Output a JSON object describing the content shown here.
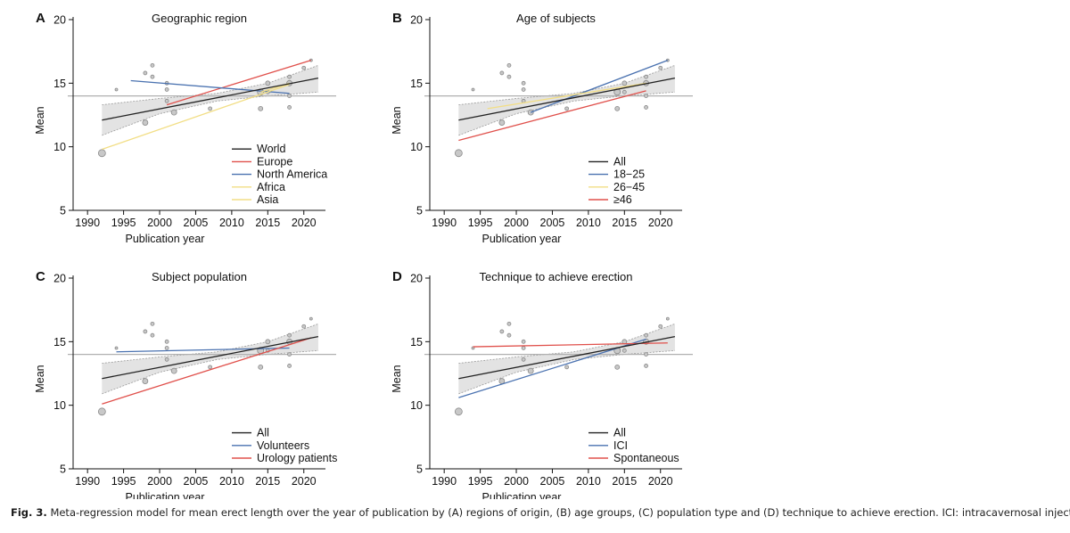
{
  "caption": {
    "label": "Fig. 3.",
    "text": "Meta-regression model for mean erect length over the year of publication by (A) regions of origin, (B) age groups, (C) population type and (D) technique to achieve erection. ICI: intracavernosal injection."
  },
  "colors": {
    "black": "#222222",
    "red": "#e0504b",
    "blue": "#4a72b0",
    "yellow": "#f2de85",
    "ci_fill": "#e3e3e3",
    "ci_line": "#9a9a9a",
    "ref_line": "#b0b0b0",
    "point_fill": "#c8c8c8",
    "point_stroke": "#8a8a8a"
  },
  "chart_data": [
    {
      "panel": "A",
      "type": "scatter",
      "title": "Geographic region",
      "xlabel": "Publication year",
      "ylabel": "Mean",
      "xlim": [
        1988,
        2023
      ],
      "ylim": [
        5,
        20
      ],
      "xticks": [
        1990,
        1995,
        2000,
        2005,
        2010,
        2015,
        2020
      ],
      "yticks": [
        5,
        10,
        15,
        20
      ],
      "reference_y": 14,
      "ci_band": [
        [
          1992,
          10.9,
          13.3
        ],
        [
          2000,
          12.6,
          13.8
        ],
        [
          2008,
          13.6,
          14.2
        ],
        [
          2015,
          14.0,
          15.0
        ],
        [
          2022,
          14.3,
          16.4
        ]
      ],
      "points": [
        [
          1992,
          9.5,
          4
        ],
        [
          1994,
          14.5,
          1.5
        ],
        [
          1998,
          11.9,
          3
        ],
        [
          1998,
          15.8,
          2
        ],
        [
          1999,
          16.4,
          2
        ],
        [
          1999,
          15.5,
          2
        ],
        [
          2001,
          13.6,
          2
        ],
        [
          2001,
          14.5,
          2
        ],
        [
          2001,
          15.0,
          2
        ],
        [
          2002,
          12.7,
          3
        ],
        [
          2007,
          13.0,
          2
        ],
        [
          2014,
          13.0,
          2.5
        ],
        [
          2014,
          14.3,
          3.5
        ],
        [
          2015,
          14.3,
          2
        ],
        [
          2015,
          15.0,
          2.5
        ],
        [
          2018,
          13.1,
          2
        ],
        [
          2018,
          14.0,
          2
        ],
        [
          2018,
          15.0,
          3
        ],
        [
          2018,
          15.5,
          2
        ],
        [
          2020,
          16.2,
          2
        ],
        [
          2021,
          16.8,
          1.5
        ]
      ],
      "series": [
        {
          "name": "World",
          "color": "#222222",
          "x": [
            1992,
            2022
          ],
          "y": [
            12.1,
            15.4
          ]
        },
        {
          "name": "Europe",
          "color": "#e0504b",
          "x": [
            2001,
            2021
          ],
          "y": [
            13.3,
            16.8
          ]
        },
        {
          "name": "North America",
          "color": "#4a72b0",
          "x": [
            1996,
            2018
          ],
          "y": [
            15.2,
            14.2
          ]
        },
        {
          "name": "Africa",
          "color": "#f2de85",
          "x": [
            1992,
            2018
          ],
          "y": [
            9.8,
            14.9
          ]
        },
        {
          "name": "Asia",
          "color": "#f2de85",
          "x": [
            2014,
            2018
          ],
          "y": [
            14.3,
            15.0
          ]
        }
      ]
    },
    {
      "panel": "B",
      "type": "scatter",
      "title": "Age of subjects",
      "xlabel": "Publication year",
      "ylabel": "Mean",
      "xlim": [
        1988,
        2023
      ],
      "ylim": [
        5,
        20
      ],
      "xticks": [
        1990,
        1995,
        2000,
        2005,
        2010,
        2015,
        2020
      ],
      "yticks": [
        5,
        10,
        15,
        20
      ],
      "reference_y": 14,
      "ci_band": [
        [
          1992,
          10.9,
          13.3
        ],
        [
          2000,
          12.6,
          13.8
        ],
        [
          2008,
          13.6,
          14.2
        ],
        [
          2015,
          14.0,
          15.0
        ],
        [
          2022,
          14.3,
          16.4
        ]
      ],
      "points": [
        [
          1992,
          9.5,
          4
        ],
        [
          1994,
          14.5,
          1.5
        ],
        [
          1998,
          11.9,
          3
        ],
        [
          1998,
          15.8,
          2
        ],
        [
          1999,
          16.4,
          2
        ],
        [
          1999,
          15.5,
          2
        ],
        [
          2001,
          13.6,
          2
        ],
        [
          2001,
          14.5,
          2
        ],
        [
          2001,
          15.0,
          2
        ],
        [
          2002,
          12.7,
          3
        ],
        [
          2007,
          13.0,
          2
        ],
        [
          2014,
          13.0,
          2.5
        ],
        [
          2014,
          14.3,
          3.5
        ],
        [
          2015,
          14.3,
          2
        ],
        [
          2015,
          15.0,
          2.5
        ],
        [
          2018,
          13.1,
          2
        ],
        [
          2018,
          14.0,
          2
        ],
        [
          2018,
          15.0,
          3
        ],
        [
          2018,
          15.5,
          2
        ],
        [
          2020,
          16.2,
          2
        ],
        [
          2021,
          16.8,
          1.5
        ]
      ],
      "series": [
        {
          "name": "All",
          "color": "#222222",
          "x": [
            1992,
            2022
          ],
          "y": [
            12.1,
            15.4
          ]
        },
        {
          "name": "18−25",
          "color": "#4a72b0",
          "x": [
            2002,
            2021
          ],
          "y": [
            12.7,
            16.8
          ]
        },
        {
          "name": "26−45",
          "color": "#f2de85",
          "x": [
            1996,
            2018
          ],
          "y": [
            13.0,
            15.0
          ]
        },
        {
          "name": "≥46",
          "color": "#e0504b",
          "x": [
            1992,
            2018
          ],
          "y": [
            10.5,
            14.4
          ]
        }
      ]
    },
    {
      "panel": "C",
      "type": "scatter",
      "title": "Subject population",
      "xlabel": "Publication year",
      "ylabel": "Mean",
      "xlim": [
        1988,
        2023
      ],
      "ylim": [
        5,
        20
      ],
      "xticks": [
        1990,
        1995,
        2000,
        2005,
        2010,
        2015,
        2020
      ],
      "yticks": [
        5,
        10,
        15,
        20
      ],
      "reference_y": 14,
      "ci_band": [
        [
          1992,
          10.9,
          13.3
        ],
        [
          2000,
          12.6,
          13.8
        ],
        [
          2008,
          13.6,
          14.2
        ],
        [
          2015,
          14.0,
          15.0
        ],
        [
          2022,
          14.3,
          16.4
        ]
      ],
      "points": [
        [
          1992,
          9.5,
          4
        ],
        [
          1994,
          14.5,
          1.5
        ],
        [
          1998,
          11.9,
          3
        ],
        [
          1998,
          15.8,
          2
        ],
        [
          1999,
          16.4,
          2
        ],
        [
          1999,
          15.5,
          2
        ],
        [
          2001,
          13.6,
          2
        ],
        [
          2001,
          14.5,
          2
        ],
        [
          2001,
          15.0,
          2
        ],
        [
          2002,
          12.7,
          3
        ],
        [
          2007,
          13.0,
          2
        ],
        [
          2014,
          13.0,
          2.5
        ],
        [
          2014,
          14.3,
          3.5
        ],
        [
          2015,
          14.3,
          2
        ],
        [
          2015,
          15.0,
          2.5
        ],
        [
          2018,
          13.1,
          2
        ],
        [
          2018,
          14.0,
          2
        ],
        [
          2018,
          15.0,
          3
        ],
        [
          2018,
          15.5,
          2
        ],
        [
          2020,
          16.2,
          2
        ],
        [
          2021,
          16.8,
          1.5
        ]
      ],
      "series": [
        {
          "name": "All",
          "color": "#222222",
          "x": [
            1992,
            2022
          ],
          "y": [
            12.1,
            15.4
          ]
        },
        {
          "name": "Volunteers",
          "color": "#4a72b0",
          "x": [
            1994,
            2018
          ],
          "y": [
            14.2,
            14.5
          ]
        },
        {
          "name": "Urology patients",
          "color": "#e0504b",
          "x": [
            1992,
            2021
          ],
          "y": [
            10.1,
            15.3
          ]
        }
      ]
    },
    {
      "panel": "D",
      "type": "scatter",
      "title": "Technique to achieve erection",
      "xlabel": "Publication year",
      "ylabel": "Mean",
      "xlim": [
        1988,
        2023
      ],
      "ylim": [
        5,
        20
      ],
      "xticks": [
        1990,
        1995,
        2000,
        2005,
        2010,
        2015,
        2020
      ],
      "yticks": [
        5,
        10,
        15,
        20
      ],
      "reference_y": 14,
      "ci_band": [
        [
          1992,
          10.9,
          13.3
        ],
        [
          2000,
          12.6,
          13.8
        ],
        [
          2008,
          13.6,
          14.2
        ],
        [
          2015,
          14.0,
          15.0
        ],
        [
          2022,
          14.3,
          16.4
        ]
      ],
      "points": [
        [
          1992,
          9.5,
          4
        ],
        [
          1994,
          14.5,
          1.5
        ],
        [
          1998,
          11.9,
          3
        ],
        [
          1998,
          15.8,
          2
        ],
        [
          1999,
          16.4,
          2
        ],
        [
          1999,
          15.5,
          2
        ],
        [
          2001,
          13.6,
          2
        ],
        [
          2001,
          14.5,
          2
        ],
        [
          2001,
          15.0,
          2
        ],
        [
          2002,
          12.7,
          3
        ],
        [
          2007,
          13.0,
          2
        ],
        [
          2014,
          13.0,
          2.5
        ],
        [
          2014,
          14.3,
          3.5
        ],
        [
          2015,
          14.3,
          2
        ],
        [
          2015,
          15.0,
          2.5
        ],
        [
          2018,
          13.1,
          2
        ],
        [
          2018,
          14.0,
          2
        ],
        [
          2018,
          15.0,
          3
        ],
        [
          2018,
          15.5,
          2
        ],
        [
          2020,
          16.2,
          2
        ],
        [
          2021,
          16.8,
          1.5
        ]
      ],
      "series": [
        {
          "name": "All",
          "color": "#222222",
          "x": [
            1992,
            2022
          ],
          "y": [
            12.1,
            15.4
          ]
        },
        {
          "name": "ICI",
          "color": "#4a72b0",
          "x": [
            1992,
            2018
          ],
          "y": [
            10.6,
            15.2
          ]
        },
        {
          "name": "Spontaneous",
          "color": "#e0504b",
          "x": [
            1994,
            2021
          ],
          "y": [
            14.6,
            14.9
          ]
        }
      ]
    }
  ]
}
